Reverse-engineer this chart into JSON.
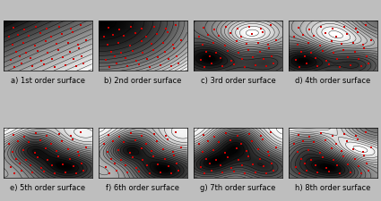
{
  "labels": [
    "a) 1st order surface",
    "b) 2nd order surface",
    "c) 3rd order surface",
    "d) 4th order surface",
    "e) 5th order surface",
    "f) 6th order surface",
    "g) 7th order surface",
    "h) 8th order surface"
  ],
  "label_fontsize": 6.0,
  "fig_bg": "#bebebe",
  "nrows": 2,
  "ncols": 4,
  "red_dot_color": "#cc0000",
  "red_dot_size": 2.5,
  "contour_levels": 18,
  "cmap": "gray"
}
